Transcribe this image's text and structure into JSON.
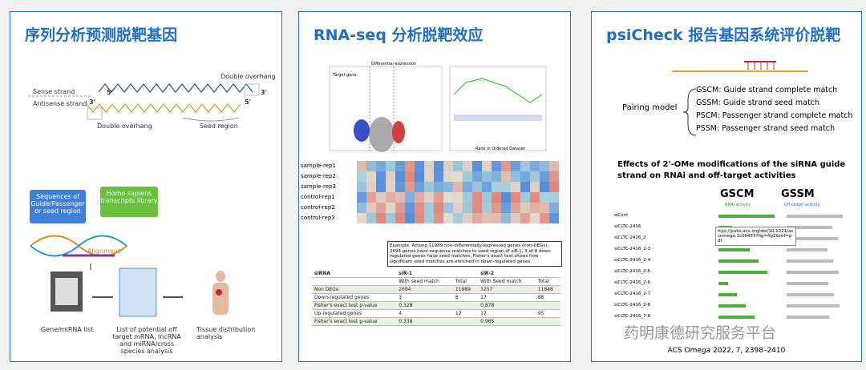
{
  "panels": [
    {
      "title": "序列分析预测脱靶基因",
      "strand": {
        "sense": "Sense strand",
        "antisense": "Antisense strand",
        "overhang": "Double overhang",
        "seed": "Seed region",
        "five": "5'",
        "three": "3'"
      },
      "workflow": {
        "sequences": "Sequences of Guide/Passenger or seed region",
        "library": "Homo sapiens transcripts library",
        "alignment": "Alignment",
        "gene_list": "Gene/miRNA list",
        "potential": "List of potential off target mRNA, lncRNA and miRNA/cross species analysis",
        "tissue": "Tissue distribution analysis"
      }
    },
    {
      "title": "RNA-seq 分析脱靶效应",
      "plots": {
        "volcano_title": "Differential expression",
        "target": "Target gene",
        "gsea_x": "Rank in Ordered Dataset"
      },
      "heatmap_rows": [
        "sample-rep1",
        "sample-rep2",
        "sample-rep3",
        "control-rep1",
        "control-rep2",
        "control-rep3"
      ],
      "note": "Example: Among 11989 non-differentially-expressed genes (non-DEGs), 2694 genes have sequence matches to seed region of siR-1, 3 of 8 down regulated genes have seed matches, Fisher's exact test shows how significant seed matches are enriched in down-regulated genes.",
      "table": {
        "header": [
          "siRNA",
          "siR-1",
          "siR-2"
        ],
        "subheader": [
          "With seed match",
          "Total",
          "With Seed match",
          "Total"
        ],
        "rows": [
          [
            "Non DEGs",
            2694,
            11989,
            3257,
            11848
          ],
          [
            "Down-regulated genes",
            3,
            8,
            17,
            88
          ],
          [
            "Fisher's exact test p-value",
            0.328,
            null,
            0.878,
            null
          ],
          [
            "Up-regulated genes",
            4,
            12,
            17,
            95
          ],
          [
            "Fisher's exact test p-value",
            0.338,
            null,
            0.965,
            null
          ]
        ]
      }
    },
    {
      "title": "psiCheck 报告基因系统评价脱靶",
      "pairing_label": "Pairing model",
      "pairing": [
        "GSCM: Guide strand complete match",
        "GSSM: Guide strand seed match",
        "PSCM: Passenger strand complete match",
        "PSSM: Passenger strand seed match"
      ],
      "effects_title": "Effects of 2'-OMe modifications of the siRNA guide strand on RNAi and off-target activities",
      "gscm": "GSCM",
      "gssm": "GSSM",
      "rnai": "RNAi activity",
      "offtarget": "Off-target activity",
      "rows": [
        "siCont",
        "siCLTC-2416",
        "siCLTC-2416_2",
        "siCLTC-2416_2-3",
        "siCLTC-2416_2-4",
        "siCLTC-2416_2-5",
        "siCLTC-2416_2-6",
        "siCLTC-2416_2-7",
        "siCLTC-2416_2-8",
        "siCLTC-2416_7-8"
      ],
      "tooltip": "ttps://pubs.acs.org/doi/10.1021/acsomega.1c06455?fig=fig2&ref=pdf",
      "watermark": "药明康德研究服务平台",
      "citation": "ACS Omega 2022, 7, 2398–2410"
    }
  ]
}
